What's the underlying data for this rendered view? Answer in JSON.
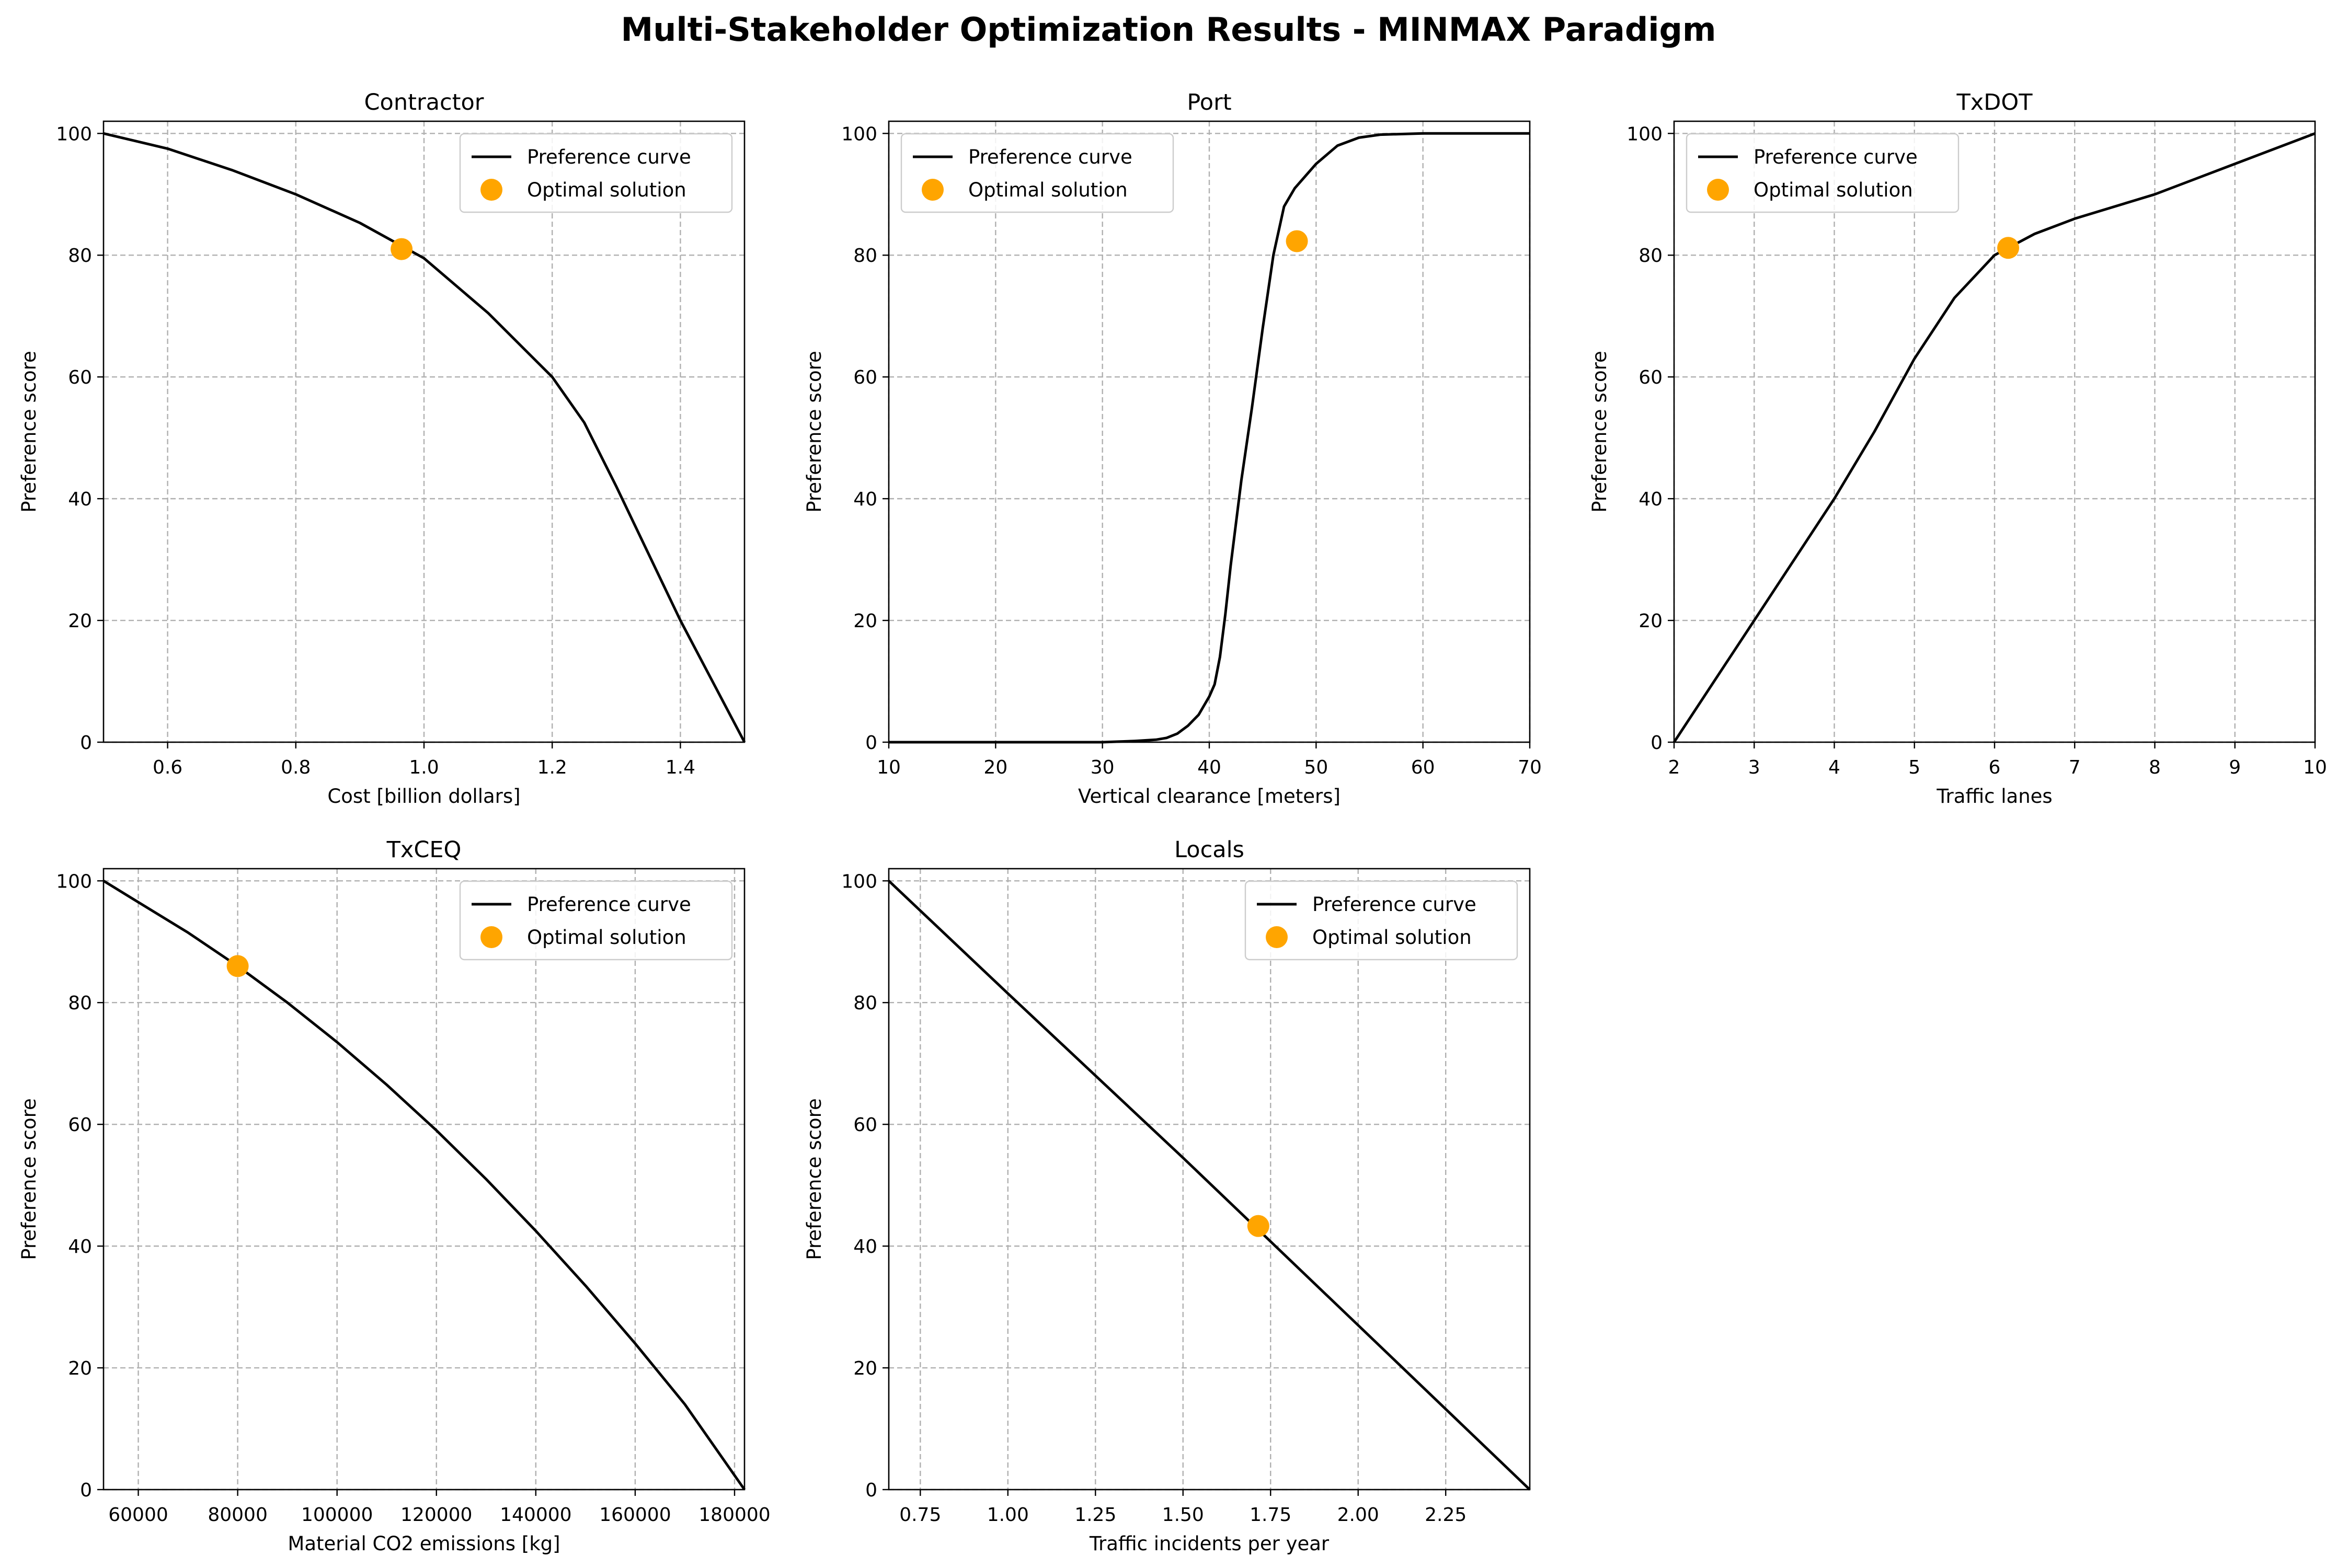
{
  "figure": {
    "title": "Multi-Stakeholder Optimization Results - MINMAX Paradigm"
  },
  "legend_labels": {
    "curve": "Preference curve",
    "point": "Optimal solution"
  },
  "colors": {
    "curve": "#000000",
    "point": "#ffa500",
    "grid": "#b0b0b0",
    "axis": "#000000"
  },
  "chart_data": [
    {
      "type": "line",
      "title": "Contractor",
      "xlabel": "Cost [billion dollars]",
      "ylabel": "Preference score",
      "xlim": [
        0.5,
        1.5
      ],
      "ylim": [
        0,
        102
      ],
      "xticks": [
        0.6,
        0.8,
        1.0,
        1.2,
        1.4
      ],
      "xtick_labels": [
        "0.6",
        "0.8",
        "1.0",
        "1.2",
        "1.4"
      ],
      "yticks": [
        0,
        20,
        40,
        60,
        80,
        100
      ],
      "ytick_labels": [
        "0",
        "20",
        "40",
        "60",
        "80",
        "100"
      ],
      "grid": true,
      "legend": "top-right",
      "series": [
        {
          "name": "Preference curve",
          "x": [
            0.5,
            0.6,
            0.7,
            0.8,
            0.9,
            1.0,
            1.1,
            1.2,
            1.25,
            1.3,
            1.35,
            1.4,
            1.45,
            1.5
          ],
          "y": [
            100,
            97.5,
            94,
            90,
            85.3,
            79.5,
            70.5,
            60,
            52.5,
            42,
            31,
            20,
            10,
            0
          ]
        },
        {
          "name": "Optimal solution",
          "x": [
            0.965
          ],
          "y": [
            81
          ]
        }
      ]
    },
    {
      "type": "line",
      "title": "Port",
      "xlabel": "Vertical clearance [meters]",
      "ylabel": "Preference score",
      "xlim": [
        10,
        70
      ],
      "ylim": [
        0,
        102
      ],
      "xticks": [
        10,
        20,
        30,
        40,
        50,
        60,
        70
      ],
      "xtick_labels": [
        "10",
        "20",
        "30",
        "40",
        "50",
        "60",
        "70"
      ],
      "yticks": [
        0,
        20,
        40,
        60,
        80,
        100
      ],
      "ytick_labels": [
        "0",
        "20",
        "40",
        "60",
        "80",
        "100"
      ],
      "grid": true,
      "legend": "top-left",
      "series": [
        {
          "name": "Preference curve",
          "x": [
            10,
            20,
            30,
            33,
            35,
            36,
            37,
            38,
            39,
            40,
            40.5,
            41,
            41.5,
            42,
            43,
            44,
            45,
            46,
            47,
            48,
            49,
            50,
            52,
            54,
            56,
            60,
            70
          ],
          "y": [
            0,
            0,
            0,
            0.2,
            0.4,
            0.7,
            1.4,
            2.7,
            4.5,
            7.5,
            9.5,
            14,
            21,
            29,
            43,
            55,
            68,
            80,
            88,
            91,
            93,
            95,
            98,
            99.3,
            99.8,
            100,
            100
          ]
        },
        {
          "name": "Optimal solution",
          "x": [
            48.2
          ],
          "y": [
            82.3
          ]
        }
      ]
    },
    {
      "type": "line",
      "title": "TxDOT",
      "xlabel": "Traffic lanes",
      "ylabel": "Preference score",
      "xlim": [
        2,
        10
      ],
      "ylim": [
        0,
        102
      ],
      "xticks": [
        2,
        3,
        4,
        5,
        6,
        7,
        8,
        9,
        10
      ],
      "xtick_labels": [
        "2",
        "3",
        "4",
        "5",
        "6",
        "7",
        "8",
        "9",
        "10"
      ],
      "yticks": [
        0,
        20,
        40,
        60,
        80,
        100
      ],
      "ytick_labels": [
        "0",
        "20",
        "40",
        "60",
        "80",
        "100"
      ],
      "grid": true,
      "legend": "top-left",
      "series": [
        {
          "name": "Preference curve",
          "x": [
            2,
            2.5,
            3,
            3.5,
            4,
            4.5,
            5,
            5.5,
            6,
            6.5,
            7,
            8,
            9,
            10
          ],
          "y": [
            0,
            10,
            20,
            30,
            40,
            51,
            63,
            73,
            80,
            83.5,
            86,
            90,
            95,
            100
          ]
        },
        {
          "name": "Optimal solution",
          "x": [
            6.17
          ],
          "y": [
            81.2
          ]
        }
      ]
    },
    {
      "type": "line",
      "title": "TxCEQ",
      "xlabel": "Material CO2 emissions [kg]",
      "ylabel": "Preference score",
      "xlim": [
        53000,
        182000
      ],
      "ylim": [
        0,
        102
      ],
      "xticks": [
        60000,
        80000,
        100000,
        120000,
        140000,
        160000,
        180000
      ],
      "xtick_labels": [
        "60000",
        "80000",
        "100000",
        "120000",
        "140000",
        "160000",
        "180000"
      ],
      "yticks": [
        0,
        20,
        40,
        60,
        80,
        100
      ],
      "ytick_labels": [
        "0",
        "20",
        "40",
        "60",
        "80",
        "100"
      ],
      "grid": true,
      "legend": "top-right",
      "series": [
        {
          "name": "Preference curve",
          "x": [
            53000,
            60000,
            70000,
            80000,
            90000,
            100000,
            110000,
            120000,
            130000,
            140000,
            150000,
            160000,
            170000,
            182000
          ],
          "y": [
            100,
            96.5,
            91.5,
            86,
            80,
            73.5,
            66.5,
            59,
            51,
            42.5,
            33.5,
            24,
            14,
            0
          ]
        },
        {
          "name": "Optimal solution",
          "x": [
            80000
          ],
          "y": [
            86
          ]
        }
      ]
    },
    {
      "type": "line",
      "title": "Locals",
      "xlabel": "Traffic incidents per year",
      "ylabel": "Preference score",
      "xlim": [
        0.66,
        2.49
      ],
      "ylim": [
        0,
        102
      ],
      "xticks": [
        0.75,
        1.0,
        1.25,
        1.5,
        1.75,
        2.0,
        2.25
      ],
      "xtick_labels": [
        "0.75",
        "1.00",
        "1.25",
        "1.50",
        "1.75",
        "2.00",
        "2.25"
      ],
      "yticks": [
        0,
        20,
        40,
        60,
        80,
        100
      ],
      "ytick_labels": [
        "0",
        "20",
        "40",
        "60",
        "80",
        "100"
      ],
      "grid": true,
      "legend": "top-right",
      "series": [
        {
          "name": "Preference curve",
          "x": [
            0.66,
            1.0,
            1.5,
            2.0,
            2.49
          ],
          "y": [
            100,
            81.5,
            54.5,
            27,
            0
          ]
        },
        {
          "name": "Optimal solution",
          "x": [
            1.715
          ],
          "y": [
            43.3
          ]
        }
      ]
    }
  ]
}
